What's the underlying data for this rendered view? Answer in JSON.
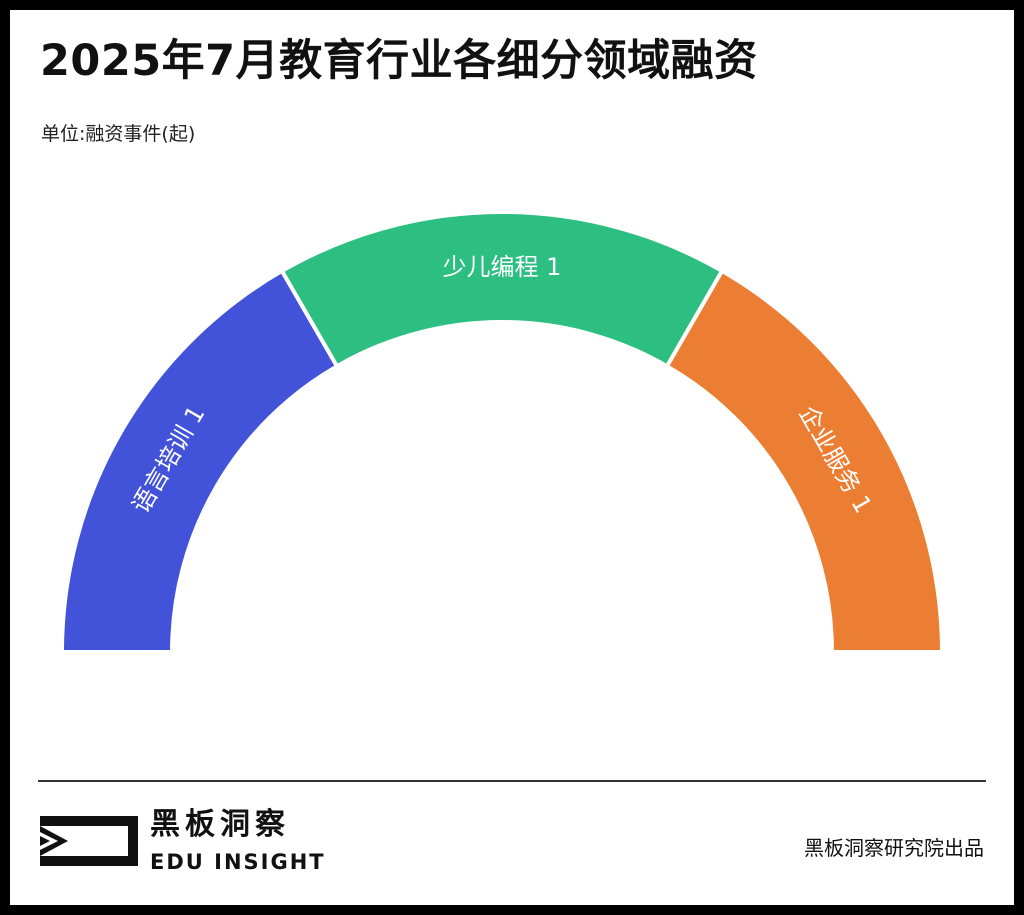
{
  "header": {
    "title": "2025年7月教育行业各细分领域融资",
    "unit": "单位:融资事件(起)"
  },
  "chart_data": {
    "type": "pie",
    "style": "semi-donut",
    "slices": [
      {
        "label": "语言培训",
        "value": 1,
        "color": "#4252d9"
      },
      {
        "label": "少儿编程",
        "value": 1,
        "color": "#2dbe81"
      },
      {
        "label": "企业服务",
        "value": 1,
        "color": "#ec7e33"
      }
    ]
  },
  "footer": {
    "brand_cn": "黑板洞察",
    "brand_en": "EDU INSIGHT",
    "credit": "黑板洞察研究院出品"
  }
}
